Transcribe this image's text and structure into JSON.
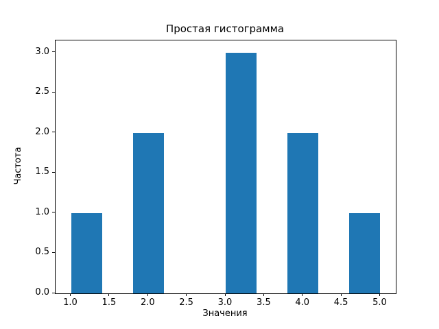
{
  "figure": {
    "background_color": "#ffffff",
    "spine_color": "#000000",
    "text_color": "#000000"
  },
  "chart_data": {
    "type": "bar",
    "subtype": "histogram",
    "title": "Простая гистограмма",
    "xlabel": "Значения",
    "ylabel": "Частота",
    "bar_color": "#1f77b4",
    "grid": false,
    "legend": null,
    "xlim": [
      0.8,
      5.2
    ],
    "ylim": [
      0,
      3.15
    ],
    "x_ticks": [
      {
        "value": 1.0,
        "label": "1.0"
      },
      {
        "value": 1.5,
        "label": "1.5"
      },
      {
        "value": 2.0,
        "label": "2.0"
      },
      {
        "value": 2.5,
        "label": "2.5"
      },
      {
        "value": 3.0,
        "label": "3.0"
      },
      {
        "value": 3.5,
        "label": "3.5"
      },
      {
        "value": 4.0,
        "label": "4.0"
      },
      {
        "value": 4.5,
        "label": "4.5"
      },
      {
        "value": 5.0,
        "label": "5.0"
      }
    ],
    "y_ticks": [
      {
        "value": 0.0,
        "label": "0.0"
      },
      {
        "value": 0.5,
        "label": "0.5"
      },
      {
        "value": 1.0,
        "label": "1.0"
      },
      {
        "value": 1.5,
        "label": "1.5"
      },
      {
        "value": 2.0,
        "label": "2.0"
      },
      {
        "value": 2.5,
        "label": "2.5"
      },
      {
        "value": 3.0,
        "label": "3.0"
      }
    ],
    "bars": [
      {
        "x0": 1.0,
        "x1": 1.4,
        "count": 1
      },
      {
        "x0": 1.8,
        "x1": 2.2,
        "count": 2
      },
      {
        "x0": 3.0,
        "x1": 3.4,
        "count": 3
      },
      {
        "x0": 3.8,
        "x1": 4.2,
        "count": 2
      },
      {
        "x0": 4.6,
        "x1": 5.0,
        "count": 1
      }
    ]
  }
}
